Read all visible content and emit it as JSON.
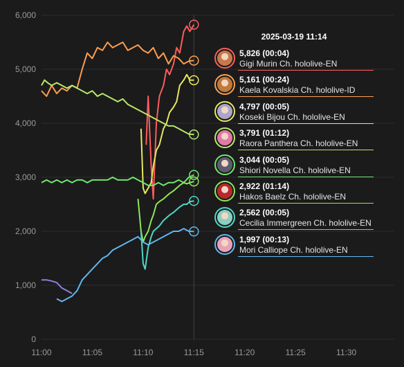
{
  "tooltip": {
    "timestamp": "2025-03-19 11:14"
  },
  "chart_data": {
    "type": "line",
    "xlabel": "",
    "ylabel": "",
    "xticks": [
      "11:00",
      "11:05",
      "11:10",
      "11:15",
      "11:20",
      "11:25",
      "11:30"
    ],
    "xlim": [
      0,
      32
    ],
    "ylim": [
      0,
      6000
    ],
    "yticks": [
      0,
      1000,
      2000,
      3000,
      4000,
      5000,
      6000
    ],
    "ytick_labels": [
      "0",
      "1,000",
      "2,000",
      "3,000",
      "4,000",
      "5,000",
      "6,000"
    ],
    "hover_x": 15,
    "series": [
      {
        "name": "Gigi Murin Ch. hololive-EN",
        "value_label": "5,826",
        "duration": "(00:04)",
        "color": "#ff5c5c",
        "x": [
          10.3,
          10.5,
          10.8,
          11.0,
          11.3,
          11.6,
          12.0,
          12.3,
          12.6,
          13.0,
          13.3,
          13.6,
          14.0,
          14.3,
          14.6,
          15.0
        ],
        "y": [
          3600,
          4500,
          3200,
          2600,
          4000,
          4500,
          4700,
          5000,
          4900,
          5100,
          5400,
          5300,
          5700,
          5800,
          5700,
          5826
        ]
      },
      {
        "name": "Kaela Kovalskia Ch. hololive-ID",
        "value_label": "5,161",
        "duration": "(00:24)",
        "color": "#ff9e4f",
        "x": [
          0,
          0.5,
          1,
          1.5,
          2,
          2.5,
          3,
          3.5,
          4,
          4.5,
          5,
          5.5,
          6,
          6.5,
          7,
          7.5,
          8,
          8.5,
          9,
          9.5,
          10,
          10.5,
          11,
          11.5,
          12,
          12.5,
          13,
          13.5,
          14,
          14.5,
          15
        ],
        "y": [
          4600,
          4500,
          4700,
          4550,
          4650,
          4600,
          4700,
          4650,
          5000,
          5300,
          5200,
          5400,
          5350,
          5500,
          5400,
          5450,
          5500,
          5350,
          5400,
          5450,
          5350,
          5300,
          5400,
          5200,
          5300,
          5100,
          5250,
          5200,
          5100,
          5150,
          5161
        ]
      },
      {
        "name": "Koseki Bijou Ch. hololive-EN",
        "value_label": "4,797",
        "duration": "(00:05)",
        "color": "#e8e860",
        "x": [
          9.8,
          10.0,
          10.2,
          10.5,
          10.8,
          11.0,
          11.3,
          11.6,
          12.0,
          12.3,
          12.6,
          13.0,
          13.3,
          13.6,
          14.0,
          14.3,
          14.6,
          15.0
        ],
        "y": [
          3900,
          2800,
          2700,
          2800,
          2900,
          3200,
          3500,
          3600,
          3900,
          4000,
          4200,
          4300,
          4400,
          4700,
          4800,
          4900,
          4800,
          4797
        ]
      },
      {
        "name": "Raora Panthera Ch. hololive-EN",
        "value_label": "3,791",
        "duration": "(01:12)",
        "color": "#b9e86a",
        "x": [
          0,
          0.3,
          0.6,
          1,
          1.5,
          2,
          2.5,
          3,
          3.5,
          4,
          4.5,
          5,
          5.5,
          6,
          6.5,
          7,
          7.5,
          8,
          8.5,
          9,
          9.5,
          10,
          10.5,
          11,
          11.5,
          12,
          12.5,
          13,
          13.5,
          14,
          14.5,
          15
        ],
        "y": [
          4700,
          4800,
          4750,
          4700,
          4750,
          4700,
          4650,
          4700,
          4650,
          4600,
          4550,
          4600,
          4500,
          4550,
          4500,
          4450,
          4400,
          4450,
          4350,
          4300,
          4250,
          4200,
          4150,
          4100,
          4050,
          4000,
          3950,
          3950,
          3900,
          3850,
          3800,
          3791
        ]
      },
      {
        "name": "Shiori Novella Ch. hololive-EN",
        "value_label": "3,044",
        "duration": "(00:05)",
        "color": "#6fe86f",
        "x": [
          0,
          0.5,
          1,
          1.5,
          2,
          2.5,
          3,
          3.5,
          4,
          4.5,
          5,
          5.5,
          6,
          6.5,
          7,
          7.5,
          8,
          8.5,
          9,
          9.5,
          10,
          10.5,
          11,
          11.5,
          12,
          12.5,
          13,
          13.5,
          14,
          14.5,
          15
        ],
        "y": [
          2900,
          2950,
          2900,
          2950,
          2900,
          2950,
          2900,
          2950,
          2950,
          2900,
          2950,
          2950,
          2950,
          2950,
          3000,
          2950,
          2950,
          2950,
          3000,
          2950,
          2900,
          2850,
          2850,
          2900,
          2850,
          2900,
          2900,
          2950,
          2900,
          3000,
          3044
        ]
      },
      {
        "name": "Hakos Baelz Ch. hololive-EN",
        "value_label": "2,922",
        "duration": "(01:14)",
        "color": "#8fe855",
        "x": [
          9.5,
          9.8,
          10.0,
          10.2,
          10.5,
          10.8,
          11.0,
          11.3,
          11.6,
          12.0,
          12.3,
          12.6,
          13.0,
          13.3,
          13.6,
          14.0,
          14.3,
          14.6,
          15.0
        ],
        "y": [
          2600,
          2000,
          1800,
          1900,
          2000,
          2200,
          2300,
          2500,
          2550,
          2600,
          2650,
          2700,
          2750,
          2800,
          2850,
          2900,
          2880,
          2900,
          2922
        ]
      },
      {
        "name": "Cecilia Immergreen Ch. hololive-EN",
        "value_label": "2,562",
        "duration": "(00:05)",
        "color": "#4fd8c8",
        "x": [
          9.8,
          10.0,
          10.2,
          10.5,
          10.8,
          11.0,
          11.3,
          11.6,
          12.0,
          12.3,
          12.6,
          13.0,
          13.3,
          13.6,
          14.0,
          14.3,
          14.6,
          15.0
        ],
        "y": [
          2000,
          1400,
          1300,
          1700,
          1900,
          2000,
          2050,
          2100,
          2200,
          2250,
          2300,
          2350,
          2400,
          2450,
          2500,
          2500,
          2550,
          2562
        ]
      },
      {
        "name": "Mori Calliope Ch. hololive-EN",
        "value_label": "1,997",
        "duration": "(00:13)",
        "color": "#5fb8f0",
        "x": [
          1.5,
          2,
          2.5,
          3,
          3.5,
          4,
          4.5,
          5,
          5.5,
          6,
          6.5,
          7,
          7.5,
          8,
          8.5,
          9,
          9.5,
          10,
          10.5,
          11,
          11.5,
          12,
          12.5,
          13,
          13.5,
          14,
          14.5,
          15
        ],
        "y": [
          750,
          700,
          750,
          800,
          900,
          1100,
          1200,
          1300,
          1400,
          1500,
          1550,
          1650,
          1700,
          1750,
          1800,
          1850,
          1900,
          1800,
          1750,
          1800,
          1850,
          1900,
          1950,
          2000,
          2000,
          2050,
          2000,
          1997
        ]
      },
      {
        "name": "",
        "value_label": "",
        "duration": "",
        "color": "#8a82e0",
        "x": [
          0,
          0.5,
          1,
          1.5,
          2,
          2.5,
          3
        ],
        "y": [
          1100,
          1100,
          1080,
          1050,
          950,
          900,
          850
        ]
      }
    ]
  },
  "avatars": [
    {
      "icon": "gigi-murin-avatar",
      "bg": "#c9784a"
    },
    {
      "icon": "kaela-kovalskia-avatar",
      "bg": "#c07a3a"
    },
    {
      "icon": "koseki-bijou-avatar",
      "bg": "#a9a6c8"
    },
    {
      "icon": "raora-panthera-avatar",
      "bg": "#e07aa6"
    },
    {
      "icon": "shiori-novella-avatar",
      "bg": "#5d5d6e"
    },
    {
      "icon": "hakos-baelz-avatar",
      "bg": "#b8282f"
    },
    {
      "icon": "cecilia-immergreen-avatar",
      "bg": "#8ccfc0"
    },
    {
      "icon": "mori-calliope-avatar",
      "bg": "#e8a2b8"
    }
  ]
}
